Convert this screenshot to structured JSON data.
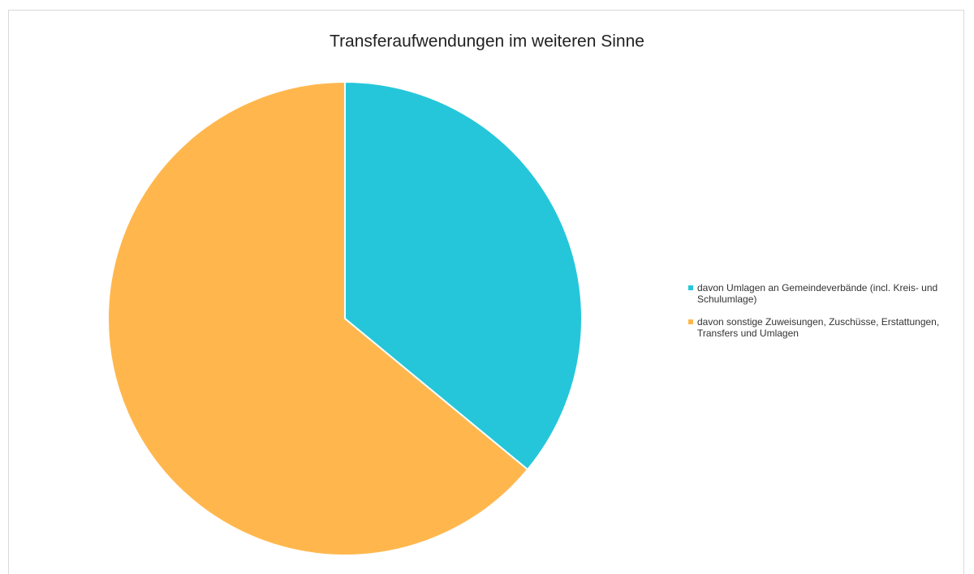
{
  "chart_data": {
    "type": "pie",
    "title": "Transferaufwendungen im weiteren Sinne",
    "categories": [
      "davon Umlagen an Gemeindeverbände (incl. Kreis- und Schulumlage)",
      "davon sonstige Zuweisungen, Zuschüsse, Erstattungen, Transfers und Umlagen"
    ],
    "values": [
      36,
      64
    ],
    "colors": [
      "#26c6da",
      "#ffb74d"
    ],
    "legend": "right"
  }
}
